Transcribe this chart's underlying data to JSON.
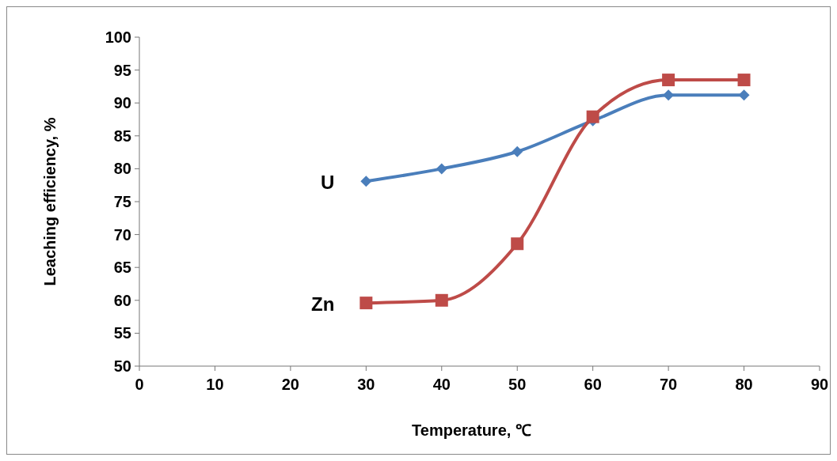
{
  "chart_data": {
    "type": "line",
    "xlabel": "Temperature, ℃",
    "ylabel": "Leaching efficiency, %",
    "xlim": [
      0,
      90
    ],
    "xticks": [
      0,
      10,
      20,
      30,
      40,
      50,
      60,
      70,
      80,
      90
    ],
    "ylim": [
      50,
      100
    ],
    "yticks": [
      50,
      55,
      60,
      65,
      70,
      75,
      80,
      85,
      90,
      95,
      100
    ],
    "grid": false,
    "series": [
      {
        "name": "U",
        "color": "#4a7ebb",
        "marker": "diamond",
        "x": [
          30,
          40,
          50,
          60,
          70,
          80
        ],
        "values": [
          78.1,
          80,
          82.6,
          87.3,
          91.2,
          91.2
        ]
      },
      {
        "name": "Zn",
        "color": "#be4b48",
        "marker": "square",
        "x": [
          30,
          40,
          50,
          60,
          70,
          80
        ],
        "values": [
          59.6,
          60,
          68.6,
          87.9,
          93.5,
          93.5
        ]
      }
    ]
  }
}
